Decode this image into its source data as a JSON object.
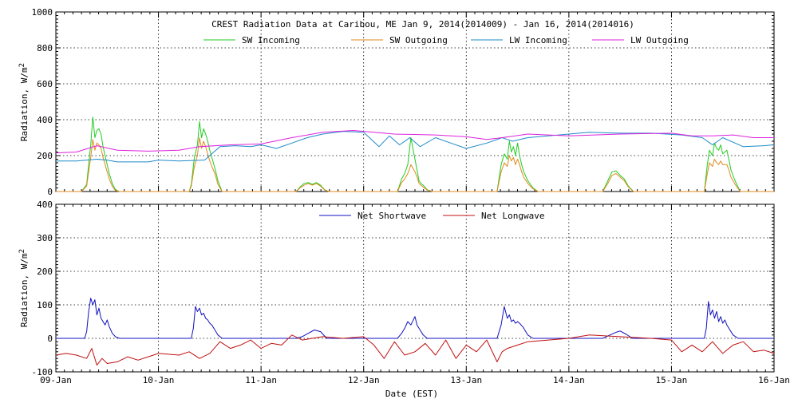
{
  "title": "CREST Radiation Data at Caribou, ME   Jan  9, 2014(2014009) - Jan 16, 2014(2014016)",
  "xlabel": "Date (EST)",
  "x_ticks": [
    "09-Jan",
    "10-Jan",
    "11-Jan",
    "12-Jan",
    "13-Jan",
    "14-Jan",
    "15-Jan",
    "16-Jan"
  ],
  "chart_data": [
    {
      "type": "line",
      "title": "CREST Radiation Data at Caribou, ME   Jan  9, 2014(2014009) - Jan 16, 2014(2014016)",
      "xlabel": "",
      "ylabel": "Radiation, W/m^2",
      "xlim": [
        0,
        7
      ],
      "ylim": [
        0,
        1000
      ],
      "y_ticks": [
        0,
        200,
        400,
        600,
        800,
        1000
      ],
      "legend": "top-center",
      "series": [
        {
          "name": "SW Incoming",
          "color": "#22cc22",
          "x": [
            0,
            0.25,
            0.3,
            0.32,
            0.34,
            0.36,
            0.38,
            0.4,
            0.42,
            0.44,
            0.46,
            0.48,
            0.5,
            0.52,
            0.55,
            0.58,
            0.62,
            1.3,
            1.32,
            1.35,
            1.38,
            1.4,
            1.42,
            1.44,
            1.46,
            1.48,
            1.5,
            1.52,
            1.55,
            1.58,
            1.62,
            2.34,
            2.38,
            2.42,
            2.46,
            2.5,
            2.54,
            2.58,
            2.62,
            2.66,
            3.33,
            3.37,
            3.4,
            3.43,
            3.46,
            3.5,
            3.52,
            3.54,
            3.56,
            3.58,
            3.62,
            3.67,
            4.3,
            4.34,
            4.37,
            4.4,
            4.42,
            4.44,
            4.46,
            4.48,
            4.5,
            4.52,
            4.54,
            4.56,
            4.6,
            4.65,
            4.7,
            5.33,
            5.38,
            5.42,
            5.46,
            5.5,
            5.54,
            5.58,
            5.63,
            6.32,
            6.35,
            6.37,
            6.4,
            6.42,
            6.44,
            6.46,
            6.48,
            6.5,
            6.52,
            6.54,
            6.56,
            6.58,
            6.62,
            6.67,
            7
          ],
          "y": [
            0,
            0,
            40,
            150,
            260,
            415,
            300,
            340,
            350,
            320,
            250,
            200,
            150,
            100,
            45,
            10,
            0,
            0,
            40,
            190,
            260,
            390,
            300,
            350,
            320,
            280,
            230,
            190,
            130,
            60,
            0,
            0,
            25,
            45,
            50,
            40,
            50,
            35,
            10,
            0,
            0,
            70,
            100,
            150,
            300,
            180,
            120,
            60,
            45,
            35,
            10,
            0,
            0,
            150,
            210,
            180,
            280,
            220,
            250,
            200,
            270,
            200,
            150,
            110,
            60,
            20,
            0,
            0,
            60,
            110,
            115,
            90,
            70,
            30,
            0,
            0,
            150,
            230,
            200,
            270,
            240,
            230,
            260,
            210,
            220,
            230,
            180,
            120,
            60,
            0,
            0
          ]
        },
        {
          "name": "SW Outgoing",
          "color": "#e08a1e",
          "x": [
            0,
            0.25,
            0.3,
            0.32,
            0.34,
            0.36,
            0.38,
            0.4,
            0.42,
            0.44,
            0.46,
            0.48,
            0.5,
            0.52,
            0.55,
            0.58,
            0.62,
            1.3,
            1.32,
            1.35,
            1.38,
            1.4,
            1.42,
            1.44,
            1.46,
            1.48,
            1.5,
            1.52,
            1.55,
            1.58,
            1.62,
            2.34,
            2.38,
            2.42,
            2.46,
            2.5,
            2.54,
            2.58,
            2.62,
            2.66,
            3.33,
            3.37,
            3.4,
            3.43,
            3.46,
            3.5,
            3.52,
            3.54,
            3.56,
            3.58,
            3.62,
            3.67,
            4.3,
            4.34,
            4.37,
            4.4,
            4.42,
            4.44,
            4.46,
            4.48,
            4.5,
            4.52,
            4.54,
            4.56,
            4.6,
            4.65,
            4.7,
            5.33,
            5.38,
            5.42,
            5.46,
            5.5,
            5.54,
            5.58,
            5.63,
            6.32,
            6.35,
            6.37,
            6.4,
            6.42,
            6.44,
            6.46,
            6.48,
            6.5,
            6.52,
            6.54,
            6.56,
            6.58,
            6.62,
            6.67,
            7
          ],
          "y": [
            0,
            0,
            30,
            110,
            190,
            290,
            230,
            270,
            260,
            240,
            190,
            150,
            110,
            70,
            30,
            5,
            0,
            0,
            30,
            140,
            200,
            300,
            240,
            280,
            250,
            210,
            170,
            140,
            100,
            40,
            0,
            0,
            20,
            35,
            45,
            35,
            45,
            30,
            8,
            0,
            0,
            50,
            70,
            100,
            150,
            110,
            80,
            45,
            35,
            25,
            8,
            0,
            0,
            110,
            160,
            140,
            200,
            170,
            190,
            150,
            180,
            150,
            110,
            80,
            45,
            15,
            0,
            0,
            45,
            90,
            100,
            80,
            60,
            25,
            0,
            0,
            100,
            160,
            140,
            180,
            160,
            150,
            170,
            150,
            150,
            150,
            120,
            80,
            40,
            0,
            0
          ]
        },
        {
          "name": "LW Incoming",
          "color": "#1f8bc9",
          "x": [
            0,
            0.2,
            0.4,
            0.5,
            0.6,
            0.9,
            1.0,
            1.2,
            1.45,
            1.6,
            1.75,
            1.9,
            2.0,
            2.15,
            2.3,
            2.45,
            2.6,
            2.8,
            3.0,
            3.15,
            3.25,
            3.35,
            3.45,
            3.55,
            3.7,
            3.85,
            4.0,
            4.2,
            4.35,
            4.45,
            4.6,
            4.8,
            5.0,
            5.2,
            5.5,
            5.8,
            6.1,
            6.3,
            6.4,
            6.5,
            6.7,
            6.9,
            7
          ],
          "y": [
            170,
            170,
            180,
            175,
            165,
            165,
            175,
            170,
            175,
            250,
            255,
            250,
            260,
            240,
            270,
            300,
            320,
            335,
            330,
            250,
            310,
            260,
            300,
            250,
            300,
            270,
            240,
            270,
            300,
            280,
            300,
            310,
            320,
            330,
            325,
            325,
            315,
            300,
            260,
            300,
            250,
            255,
            260
          ]
        },
        {
          "name": "LW Outgoing",
          "color": "#dd22dd",
          "x": [
            0,
            0.2,
            0.4,
            0.6,
            0.9,
            1.2,
            1.4,
            1.7,
            2.0,
            2.3,
            2.6,
            2.9,
            3.3,
            3.7,
            4.0,
            4.2,
            4.35,
            4.6,
            5.0,
            5.5,
            6.0,
            6.2,
            6.4,
            6.6,
            6.8,
            7
          ],
          "y": [
            215,
            220,
            255,
            230,
            225,
            230,
            250,
            260,
            265,
            300,
            330,
            340,
            320,
            315,
            305,
            290,
            300,
            320,
            310,
            320,
            325,
            310,
            310,
            315,
            300,
            300
          ]
        }
      ]
    },
    {
      "type": "line",
      "title": "",
      "xlabel": "Date (EST)",
      "ylabel": "Radiation, W/m^2",
      "xlim": [
        0,
        7
      ],
      "ylim": [
        -100,
        400
      ],
      "y_ticks": [
        -100,
        0,
        100,
        200,
        300,
        400
      ],
      "x_ticks": [
        "09-Jan",
        "10-Jan",
        "11-Jan",
        "12-Jan",
        "13-Jan",
        "14-Jan",
        "15-Jan",
        "16-Jan"
      ],
      "legend": "top-center",
      "series": [
        {
          "name": "Net Shortwave",
          "color": "#1010c0",
          "x": [
            0,
            0.28,
            0.3,
            0.32,
            0.34,
            0.36,
            0.38,
            0.4,
            0.42,
            0.44,
            0.46,
            0.48,
            0.5,
            0.52,
            0.55,
            0.58,
            0.62,
            1.32,
            1.34,
            1.36,
            1.38,
            1.4,
            1.42,
            1.44,
            1.46,
            1.48,
            1.5,
            1.52,
            1.55,
            1.58,
            1.62,
            2.34,
            2.4,
            2.46,
            2.52,
            2.58,
            2.64,
            3.33,
            3.37,
            3.4,
            3.43,
            3.46,
            3.5,
            3.52,
            3.55,
            3.58,
            3.62,
            4.3,
            4.34,
            4.37,
            4.4,
            4.42,
            4.44,
            4.46,
            4.48,
            4.5,
            4.52,
            4.55,
            4.6,
            4.65,
            5.33,
            5.4,
            5.46,
            5.5,
            5.56,
            5.62,
            6.32,
            6.34,
            6.36,
            6.38,
            6.4,
            6.42,
            6.44,
            6.46,
            6.48,
            6.5,
            6.52,
            6.54,
            6.56,
            6.6,
            6.65,
            7
          ],
          "y": [
            0,
            0,
            20,
            80,
            120,
            100,
            115,
            70,
            90,
            60,
            50,
            40,
            55,
            35,
            15,
            5,
            0,
            0,
            30,
            95,
            80,
            90,
            70,
            75,
            60,
            55,
            45,
            40,
            25,
            10,
            0,
            0,
            5,
            15,
            25,
            20,
            0,
            0,
            15,
            30,
            50,
            40,
            65,
            40,
            25,
            10,
            0,
            0,
            40,
            95,
            60,
            70,
            50,
            55,
            45,
            50,
            45,
            35,
            10,
            0,
            0,
            10,
            18,
            22,
            12,
            0,
            0,
            30,
            110,
            70,
            85,
            60,
            80,
            50,
            65,
            45,
            55,
            40,
            30,
            10,
            0,
            0
          ]
        },
        {
          "name": "Net Longwave",
          "color": "#c01010",
          "x": [
            0,
            0.1,
            0.2,
            0.3,
            0.35,
            0.4,
            0.45,
            0.5,
            0.6,
            0.7,
            0.8,
            0.9,
            1.0,
            1.2,
            1.3,
            1.4,
            1.5,
            1.6,
            1.7,
            1.8,
            1.9,
            2.0,
            2.1,
            2.2,
            2.3,
            2.4,
            2.5,
            2.6,
            2.8,
            3.0,
            3.1,
            3.2,
            3.3,
            3.4,
            3.5,
            3.6,
            3.7,
            3.8,
            3.9,
            4.0,
            4.1,
            4.2,
            4.3,
            4.35,
            4.4,
            4.5,
            4.6,
            4.8,
            5.0,
            5.2,
            5.5,
            5.8,
            6.0,
            6.1,
            6.2,
            6.3,
            6.4,
            6.5,
            6.6,
            6.7,
            6.8,
            6.9,
            7
          ],
          "y": [
            -50,
            -45,
            -50,
            -60,
            -30,
            -80,
            -60,
            -75,
            -70,
            -55,
            -65,
            -55,
            -45,
            -50,
            -40,
            -60,
            -45,
            -10,
            -30,
            -20,
            -5,
            -30,
            -15,
            -20,
            10,
            -5,
            0,
            5,
            0,
            5,
            -20,
            -60,
            -10,
            -50,
            -40,
            -15,
            -50,
            -5,
            -60,
            -20,
            -40,
            -5,
            -70,
            -40,
            -30,
            -20,
            -10,
            -5,
            0,
            10,
            5,
            0,
            -5,
            -40,
            -20,
            -40,
            -10,
            -45,
            -20,
            -10,
            -40,
            -35,
            -45
          ]
        }
      ]
    }
  ]
}
